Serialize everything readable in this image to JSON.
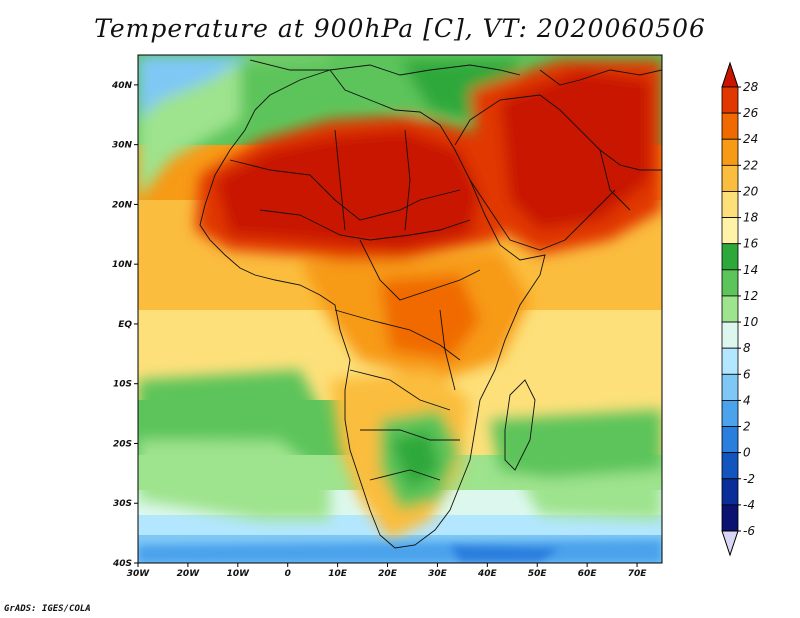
{
  "title": "Temperature at 900hPa [C], VT: 2020060506",
  "footer": "GrADS: IGES/COLA",
  "map": {
    "lat_ticks": [
      "40N",
      "30N",
      "20N",
      "10N",
      "EQ",
      "10S",
      "20S",
      "30S",
      "40S"
    ],
    "lon_ticks": [
      "30W",
      "20W",
      "10W",
      "0",
      "10E",
      "20E",
      "30E",
      "40E",
      "50E",
      "60E",
      "70E"
    ],
    "lat_range": [
      -40,
      45
    ],
    "lon_range": [
      -30,
      75
    ]
  },
  "colorbar": {
    "labels": [
      "28",
      "26",
      "24",
      "22",
      "20",
      "18",
      "16",
      "14",
      "12",
      "10",
      "8",
      "6",
      "4",
      "2",
      "0",
      "-2",
      "-4",
      "-6"
    ],
    "colors": [
      "#c81400",
      "#e13700",
      "#f06a00",
      "#f79a16",
      "#fbbd3e",
      "#fde07a",
      "#fff3a8",
      "#2ea83a",
      "#5cc45a",
      "#9ee38d",
      "#dcf8ee",
      "#b3e7ff",
      "#7fc8f6",
      "#4ba3ec",
      "#2a7ede",
      "#1255bf",
      "#0a2e99",
      "#0b1270"
    ]
  }
}
